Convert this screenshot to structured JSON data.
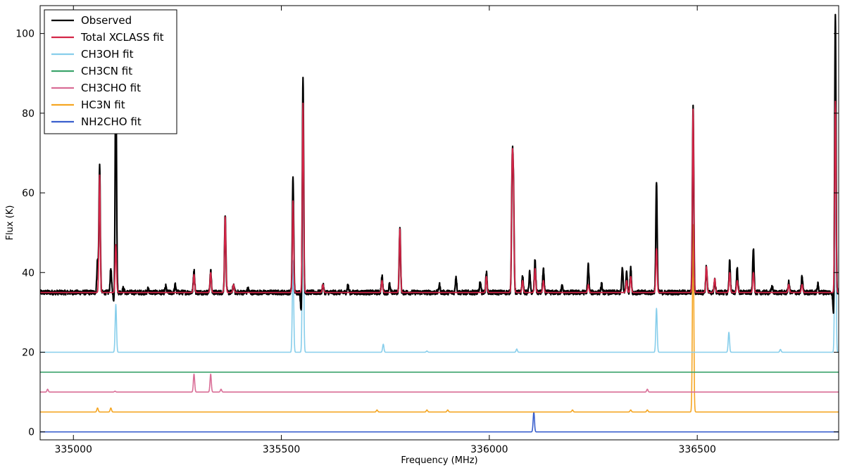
{
  "chart_data": {
    "type": "line",
    "title": "",
    "xlabel": "Frequency (MHz)",
    "ylabel": "Flux (K)",
    "xlim": [
      334920,
      336840
    ],
    "ylim": [
      -2,
      107
    ],
    "x_ticks": [
      335000,
      335500,
      336000,
      336500
    ],
    "x_tick_labels": [
      "335000",
      "335500",
      "336000",
      "336500"
    ],
    "y_ticks": [
      0,
      20,
      40,
      60,
      80,
      100
    ],
    "y_tick_labels": [
      "0",
      "20",
      "40",
      "60",
      "80",
      "100"
    ],
    "grid": false,
    "legend": {
      "placement": "top-left"
    },
    "line_width_points": 2.2,
    "series": [
      {
        "name": "Observed",
        "color": "#000000",
        "baseline": 35,
        "noise": 0.6,
        "peaks": [
          [
            335058,
            43
          ],
          [
            335063,
            67
          ],
          [
            335090,
            41
          ],
          [
            335098,
            32
          ],
          [
            335102,
            94
          ],
          [
            335120,
            36
          ],
          [
            335180,
            36
          ],
          [
            335222,
            36.5
          ],
          [
            335245,
            37
          ],
          [
            335290,
            40.5
          ],
          [
            335330,
            40.5
          ],
          [
            335365,
            54.5
          ],
          [
            335385,
            37
          ],
          [
            335420,
            36
          ],
          [
            335528,
            64
          ],
          [
            335548,
            29.5
          ],
          [
            335552,
            89
          ],
          [
            335600,
            37
          ],
          [
            335660,
            37
          ],
          [
            335742,
            39
          ],
          [
            335760,
            37
          ],
          [
            335785,
            51
          ],
          [
            335880,
            37
          ],
          [
            335920,
            39
          ],
          [
            335978,
            37.5
          ],
          [
            335993,
            40
          ],
          [
            336055,
            65
          ],
          [
            336058,
            60
          ],
          [
            336080,
            39
          ],
          [
            336097,
            40
          ],
          [
            336110,
            43
          ],
          [
            336130,
            41
          ],
          [
            336175,
            36.5
          ],
          [
            336238,
            42
          ],
          [
            336270,
            37
          ],
          [
            336320,
            41
          ],
          [
            336330,
            40
          ],
          [
            336340,
            41
          ],
          [
            336402,
            62.5
          ],
          [
            336490,
            81.5
          ],
          [
            336522,
            41.5
          ],
          [
            336542,
            38
          ],
          [
            336578,
            43
          ],
          [
            336596,
            41
          ],
          [
            336635,
            46
          ],
          [
            336680,
            36.5
          ],
          [
            336720,
            37.5
          ],
          [
            336752,
            39
          ],
          [
            336790,
            37
          ],
          [
            336828,
            28.5
          ],
          [
            336832,
            105.5
          ]
        ]
      },
      {
        "name": "Total XCLASS fit",
        "color": "#d42547",
        "baseline": 35,
        "noise": 0,
        "peaks": [
          [
            335063,
            64.5
          ],
          [
            335102,
            47
          ],
          [
            335290,
            39.5
          ],
          [
            335330,
            40
          ],
          [
            335365,
            54
          ],
          [
            335385,
            37
          ],
          [
            335528,
            58
          ],
          [
            335552,
            82.5
          ],
          [
            335600,
            37
          ],
          [
            335742,
            38
          ],
          [
            335785,
            51
          ],
          [
            335993,
            39
          ],
          [
            336055,
            65
          ],
          [
            336058,
            60
          ],
          [
            336080,
            38
          ],
          [
            336110,
            41
          ],
          [
            336130,
            38
          ],
          [
            336238,
            37
          ],
          [
            336330,
            38
          ],
          [
            336340,
            39
          ],
          [
            336402,
            46
          ],
          [
            336490,
            81
          ],
          [
            336522,
            41.5
          ],
          [
            336542,
            38.5
          ],
          [
            336578,
            40
          ],
          [
            336596,
            38
          ],
          [
            336635,
            40
          ],
          [
            336720,
            37
          ],
          [
            336752,
            37
          ],
          [
            336832,
            83
          ]
        ]
      },
      {
        "name": "CH3OH fit",
        "color": "#87ceeb",
        "baseline": 20,
        "noise": 0,
        "peaks": [
          [
            335102,
            32
          ],
          [
            335528,
            43
          ],
          [
            335552,
            67.5
          ],
          [
            335745,
            22
          ],
          [
            335850,
            20.3
          ],
          [
            336066,
            20.8
          ],
          [
            336402,
            31
          ],
          [
            336576,
            25
          ],
          [
            336700,
            20.7
          ],
          [
            336832,
            68.5
          ]
        ]
      },
      {
        "name": "CH3CN fit",
        "color": "#3ca46c",
        "baseline": 15,
        "noise": 0,
        "peaks": []
      },
      {
        "name": "CH3CHO fit",
        "color": "#d96d96",
        "baseline": 10,
        "noise": 0,
        "peaks": [
          [
            334938,
            10.7
          ],
          [
            335100,
            10.2
          ],
          [
            335290,
            14.5
          ],
          [
            335330,
            14.5
          ],
          [
            335355,
            10.7
          ],
          [
            336380,
            10.7
          ]
        ]
      },
      {
        "name": "HC3N fit",
        "color": "#f5a623",
        "baseline": 5,
        "noise": 0,
        "peaks": [
          [
            335058,
            6
          ],
          [
            335090,
            6
          ],
          [
            335730,
            5.5
          ],
          [
            335850,
            5.5
          ],
          [
            335900,
            5.5
          ],
          [
            336200,
            5.5
          ],
          [
            336340,
            5.5
          ],
          [
            336380,
            5.5
          ],
          [
            336490,
            52
          ]
        ]
      },
      {
        "name": "NH2CHO fit",
        "color": "#3a5fcd",
        "baseline": 0,
        "noise": 0,
        "peaks": [
          [
            336107,
            5
          ]
        ]
      }
    ]
  }
}
